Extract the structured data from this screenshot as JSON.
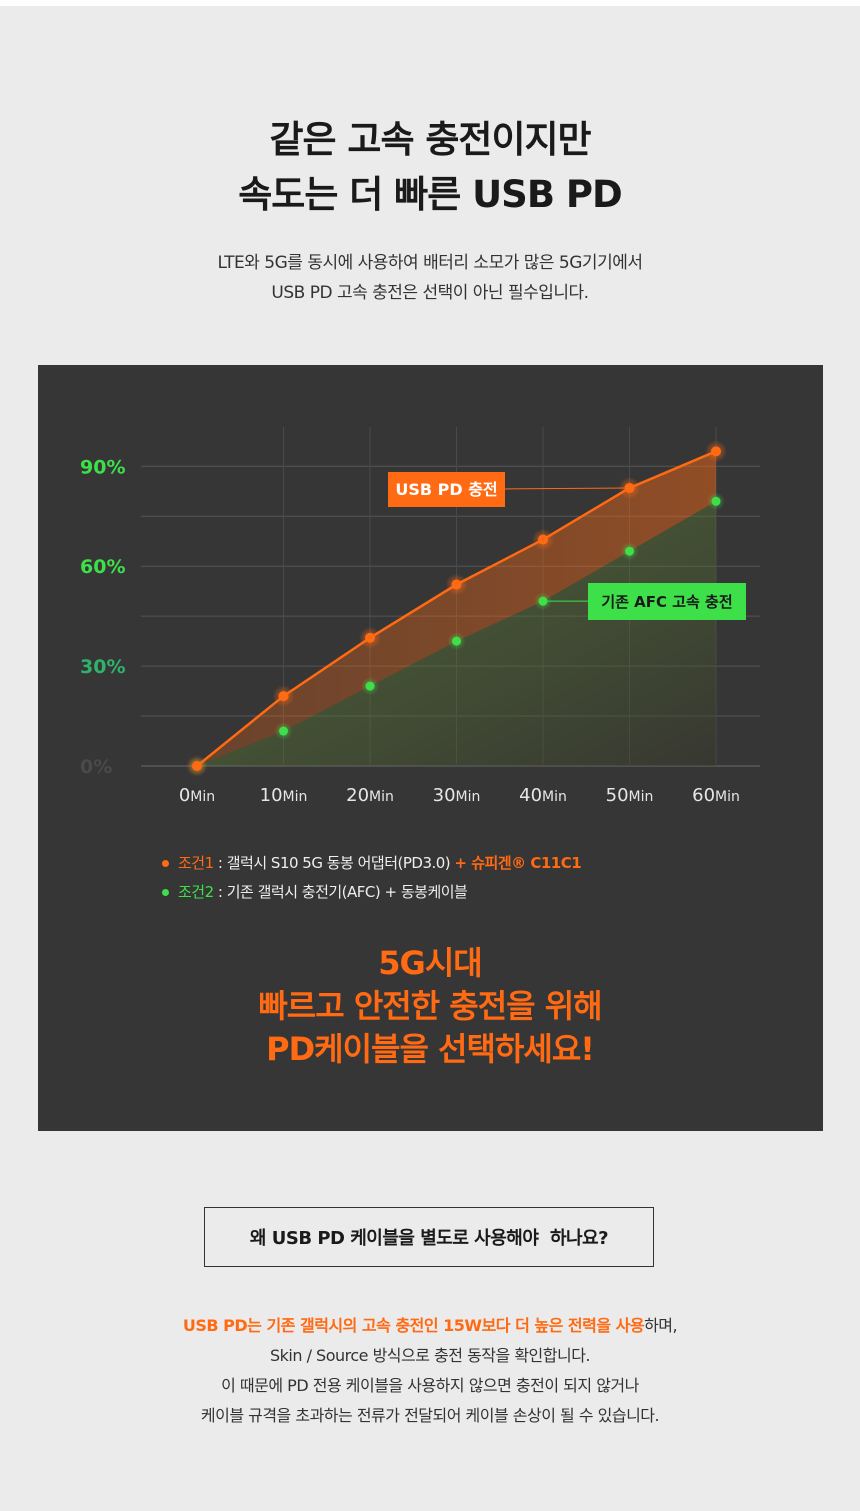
{
  "header": {
    "headline_line1": "같은 고속 충전이지만",
    "headline_line2": "속도는 더 빠른 USB PD",
    "sub_line1": "LTE와 5G를 동시에 사용하여 배터리 소모가 많은 5G기기에서",
    "sub_line2": "USB PD 고속 충전은 선택이 아닌 필수입니다."
  },
  "colors": {
    "accent_orange": "#ff6a13",
    "accent_green": "#3ee04a",
    "panel_bg": "#363636",
    "page_bg": "#ebebeb"
  },
  "chart_data": {
    "type": "line",
    "x": [
      0,
      10,
      20,
      30,
      40,
      50,
      60
    ],
    "categories": [
      "0Min",
      "10Min",
      "20Min",
      "30Min",
      "40Min",
      "50Min",
      "60Min"
    ],
    "series": [
      {
        "name": "USB PD 충전",
        "values": [
          0,
          21,
          38.5,
          54.5,
          68,
          83.5,
          94.5
        ]
      },
      {
        "name": "기존 AFC 고속 충전",
        "values": [
          0,
          10.5,
          24,
          37.5,
          49.5,
          64.5,
          79.5
        ]
      }
    ],
    "y_ticks": [
      "0%",
      "30%",
      "60%",
      "90%"
    ],
    "ylim": [
      0,
      100
    ],
    "grid": true,
    "title": "",
    "xlabel": "",
    "ylabel": ""
  },
  "legend": {
    "cond1_label": "조건1",
    "cond1_sep": " : ",
    "cond1_text": "갤럭시 S10 5G 동봉 어댑터(PD3.0) ",
    "cond1_highlight": "+ 슈피겐® C11C1",
    "cond2_label": "조건2",
    "cond2_sep": " : ",
    "cond2_text": "기존 갤럭시 충전기(AFC) + 동봉케이블"
  },
  "slogan": {
    "line1": "5G시대",
    "line2": "빠르고 안전한 충전을 위해",
    "line3": "PD케이블을 선택하세요!"
  },
  "faq": {
    "question": "왜 USB PD 케이블을 별도로 사용해야  하나요?",
    "answer_highlight": "USB PD는 기존 갤럭시의 고속 충전인 15W보다 더 높은 전력을 사용",
    "answer_line1_rest": "하며,",
    "answer_line2": "Skin / Source 방식으로 충전 동작을 확인합니다.",
    "answer_line3": "이 때문에 PD 전용 케이블을 사용하지 않으면 충전이 되지 않거나",
    "answer_line4": "케이블 규격을 초과하는 전류가 전달되어 케이블 손상이 될 수 있습니다."
  }
}
